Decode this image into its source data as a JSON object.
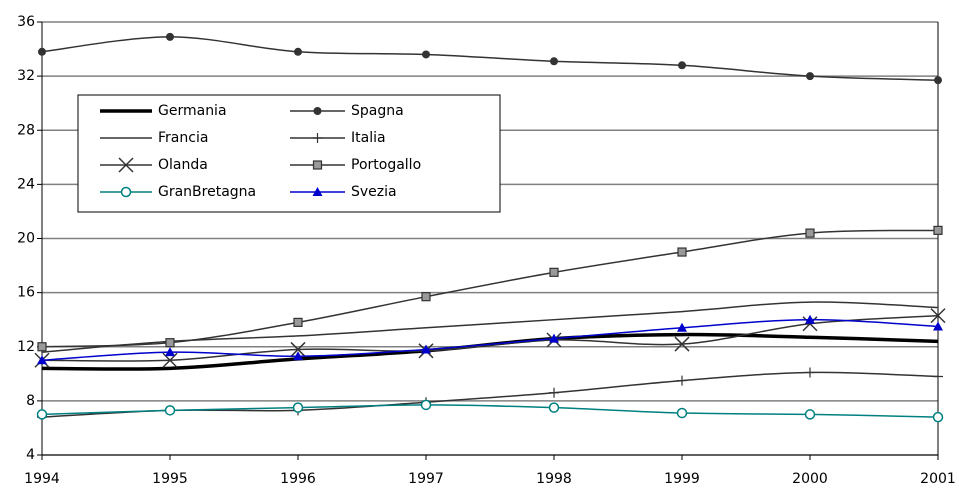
{
  "chart_data": {
    "type": "line",
    "x": [
      1994,
      1995,
      1996,
      1997,
      1998,
      1999,
      2000,
      2001
    ],
    "xlim": [
      1994,
      2001
    ],
    "xticks": [
      1994,
      1995,
      1996,
      1997,
      1998,
      1999,
      2000,
      2001
    ],
    "ylim": [
      4,
      36
    ],
    "yticks": [
      4,
      8,
      12,
      16,
      20,
      24,
      28,
      32,
      36
    ],
    "grid": true,
    "series": [
      {
        "name": "Germania",
        "color": "#000000",
        "width": 3.5,
        "marker": "none",
        "values": [
          10.4,
          10.4,
          11.1,
          11.7,
          12.6,
          12.9,
          12.7,
          12.4
        ]
      },
      {
        "name": "Spagna",
        "color": "#333333",
        "width": 1.5,
        "marker": "circle",
        "values": [
          33.8,
          34.9,
          33.8,
          33.6,
          33.1,
          32.8,
          32.0,
          31.7
        ]
      },
      {
        "name": "Francia",
        "color": "#333333",
        "width": 1.5,
        "marker": "none",
        "values": [
          11.6,
          12.4,
          12.8,
          13.4,
          14.0,
          14.6,
          15.3,
          14.9
        ]
      },
      {
        "name": "Italia",
        "color": "#333333",
        "width": 1.5,
        "marker": "plus",
        "values": [
          6.8,
          7.3,
          7.3,
          7.9,
          8.6,
          9.5,
          10.1,
          9.8
        ]
      },
      {
        "name": "Olanda",
        "color": "#333333",
        "width": 1.5,
        "marker": "cross",
        "values": [
          11.0,
          11.0,
          11.8,
          11.7,
          12.5,
          12.2,
          13.7,
          14.3
        ]
      },
      {
        "name": "Portogallo",
        "color": "#333333",
        "width": 1.5,
        "marker": "square",
        "values": [
          12.0,
          12.3,
          13.8,
          15.7,
          17.5,
          19.0,
          20.4,
          20.6
        ]
      },
      {
        "name": "GranBretagna",
        "color": "#008080",
        "width": 1.5,
        "marker": "open-circle",
        "values": [
          7.0,
          7.3,
          7.5,
          7.7,
          7.5,
          7.1,
          7.0,
          6.8
        ]
      },
      {
        "name": "Svezia",
        "color": "#0000cc",
        "width": 1.5,
        "marker": "triangle",
        "values": [
          11.0,
          11.6,
          11.3,
          11.8,
          12.6,
          13.4,
          14.0,
          13.5
        ]
      }
    ]
  }
}
